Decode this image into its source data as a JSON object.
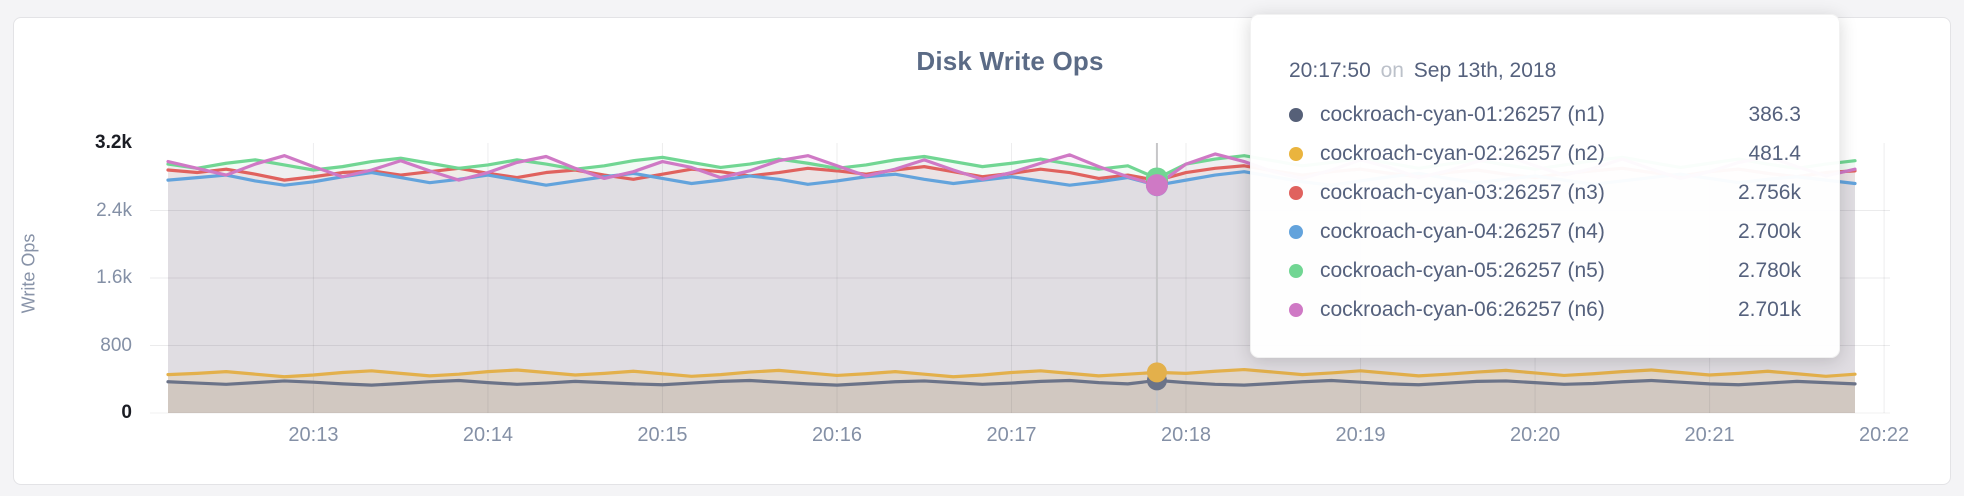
{
  "chart": {
    "title": "Disk Write Ops",
    "y_axis_label": "Write Ops",
    "y_ticks": [
      "3.2k",
      "2.4k",
      "1.6k",
      "800",
      "0"
    ],
    "x_ticks": [
      "20:13",
      "20:14",
      "20:15",
      "20:16",
      "20:17",
      "20:18",
      "20:19",
      "20:20",
      "20:21",
      "20:22"
    ]
  },
  "tooltip": {
    "time": "20:17:50",
    "conjunction": "on",
    "date": "Sep 13th, 2018",
    "rows": [
      {
        "name": "cockroach-cyan-01:26257 (n1)",
        "value": "386.3",
        "color": "#566078"
      },
      {
        "name": "cockroach-cyan-02:26257 (n2)",
        "value": "481.4",
        "color": "#eab43e"
      },
      {
        "name": "cockroach-cyan-03:26257 (n3)",
        "value": "2.756k",
        "color": "#e0625e"
      },
      {
        "name": "cockroach-cyan-04:26257 (n4)",
        "value": "2.700k",
        "color": "#63a3dc"
      },
      {
        "name": "cockroach-cyan-05:26257 (n5)",
        "value": "2.780k",
        "color": "#71d693"
      },
      {
        "name": "cockroach-cyan-06:26257 (n6)",
        "value": "2.701k",
        "color": "#cf79c5"
      }
    ]
  },
  "chart_data": {
    "type": "line",
    "title": "Disk Write Ops",
    "xlabel": "",
    "ylabel": "Write Ops",
    "ylim": [
      0,
      3200
    ],
    "y_tick_values": [
      0,
      800,
      1600,
      2400,
      3200
    ],
    "y_tick_labels": [
      "0",
      "800",
      "1.6k",
      "2.4k",
      "3.2k"
    ],
    "x_tick_labels": [
      "20:13",
      "20:14",
      "20:15",
      "20:16",
      "20:17",
      "20:18",
      "20:19",
      "20:20",
      "20:21",
      "20:22"
    ],
    "x_start_time": "20:12:10",
    "x_interval_seconds": 10,
    "grid": true,
    "legend_position": "tooltip",
    "hover": {
      "time": "20:17:50",
      "date": "Sep 13th, 2018",
      "point_index": 34,
      "values": {
        "n1": 386.3,
        "n2": 481.4,
        "n3": 2756,
        "n4": 2700,
        "n5": 2780,
        "n6": 2701
      }
    },
    "series": [
      {
        "name": "cockroach-cyan-03:26257 (n3)",
        "color": "#e0625e",
        "fill_opacity": 0.09,
        "values": [
          2880,
          2850,
          2890,
          2830,
          2760,
          2800,
          2850,
          2870,
          2820,
          2860,
          2900,
          2840,
          2790,
          2850,
          2880,
          2820,
          2770,
          2830,
          2890,
          2860,
          2810,
          2850,
          2900,
          2870,
          2830,
          2880,
          2920,
          2860,
          2800,
          2840,
          2890,
          2850,
          2780,
          2820,
          2756,
          2850,
          2900,
          2930,
          2870,
          2820,
          2860,
          2890,
          2840,
          2800,
          2850,
          2880,
          2830,
          2790,
          2840,
          2870,
          2900,
          2850,
          2810,
          2860,
          2890,
          2840,
          2800,
          2850,
          2870
        ]
      },
      {
        "name": "cockroach-cyan-04:26257 (n4)",
        "color": "#63a3dc",
        "fill_opacity": 0.09,
        "values": [
          2760,
          2790,
          2820,
          2750,
          2700,
          2740,
          2800,
          2850,
          2790,
          2730,
          2770,
          2820,
          2760,
          2700,
          2750,
          2800,
          2840,
          2780,
          2720,
          2760,
          2810,
          2770,
          2710,
          2750,
          2800,
          2830,
          2770,
          2720,
          2760,
          2800,
          2750,
          2700,
          2740,
          2790,
          2700,
          2760,
          2820,
          2860,
          2800,
          2740,
          2700,
          2750,
          2800,
          2840,
          2780,
          2730,
          2770,
          2810,
          2760,
          2710,
          2750,
          2790,
          2830,
          2780,
          2730,
          2770,
          2800,
          2760,
          2720
        ]
      },
      {
        "name": "cockroach-cyan-05:26257 (n5)",
        "color": "#71d693",
        "fill_opacity": 0.09,
        "values": [
          2950,
          2900,
          2960,
          3000,
          2940,
          2880,
          2920,
          2980,
          3020,
          2960,
          2900,
          2940,
          3000,
          2950,
          2890,
          2930,
          2990,
          3030,
          2970,
          2910,
          2950,
          3010,
          2960,
          2900,
          2940,
          3000,
          3040,
          2980,
          2920,
          2960,
          3010,
          2950,
          2890,
          2930,
          2780,
          2950,
          3010,
          3050,
          2990,
          2930,
          2970,
          3020,
          2960,
          2900,
          2950,
          3000,
          2940,
          2890,
          2940,
          2990,
          3030,
          2970,
          2910,
          2960,
          3010,
          2950,
          2900,
          2950,
          2990
        ]
      },
      {
        "name": "cockroach-cyan-06:26257 (n6)",
        "color": "#cf79c5",
        "fill_opacity": 0.09,
        "values": [
          2980,
          2900,
          2820,
          2950,
          3050,
          2920,
          2800,
          2880,
          2990,
          2870,
          2760,
          2850,
          2970,
          3040,
          2900,
          2780,
          2860,
          2980,
          2910,
          2790,
          2870,
          2990,
          3050,
          2930,
          2810,
          2890,
          3000,
          2880,
          2770,
          2850,
          2960,
          3060,
          2920,
          2800,
          2701,
          2950,
          3070,
          2980,
          2860,
          2780,
          2880,
          3000,
          2910,
          2790,
          2870,
          2980,
          3050,
          2930,
          2820,
          2900,
          3010,
          2890,
          2780,
          2860,
          2970,
          3040,
          2920,
          2810,
          2890
        ]
      },
      {
        "name": "cockroach-cyan-02:26257 (n2)",
        "color": "#e3b04b",
        "fill_opacity": 0.16,
        "values": [
          455,
          470,
          490,
          460,
          430,
          450,
          480,
          500,
          470,
          440,
          460,
          490,
          510,
          480,
          450,
          470,
          495,
          465,
          435,
          455,
          485,
          505,
          475,
          445,
          465,
          490,
          460,
          430,
          450,
          480,
          500,
          470,
          440,
          460,
          481.4,
          470,
          495,
          515,
          485,
          455,
          475,
          500,
          470,
          440,
          460,
          485,
          505,
          475,
          445,
          465,
          490,
          510,
          480,
          450,
          470,
          495,
          465,
          435,
          460
        ]
      },
      {
        "name": "cockroach-cyan-01:26257 (n1)",
        "color": "#6b7388",
        "fill_opacity": 0.13,
        "values": [
          370,
          355,
          340,
          360,
          380,
          365,
          345,
          330,
          350,
          370,
          385,
          360,
          340,
          355,
          375,
          360,
          345,
          335,
          355,
          375,
          385,
          365,
          345,
          330,
          350,
          370,
          380,
          360,
          340,
          355,
          375,
          385,
          360,
          345,
          386.3,
          360,
          340,
          330,
          350,
          370,
          385,
          365,
          345,
          335,
          355,
          375,
          380,
          360,
          340,
          350,
          370,
          385,
          365,
          345,
          335,
          355,
          375,
          360,
          345
        ]
      }
    ]
  }
}
